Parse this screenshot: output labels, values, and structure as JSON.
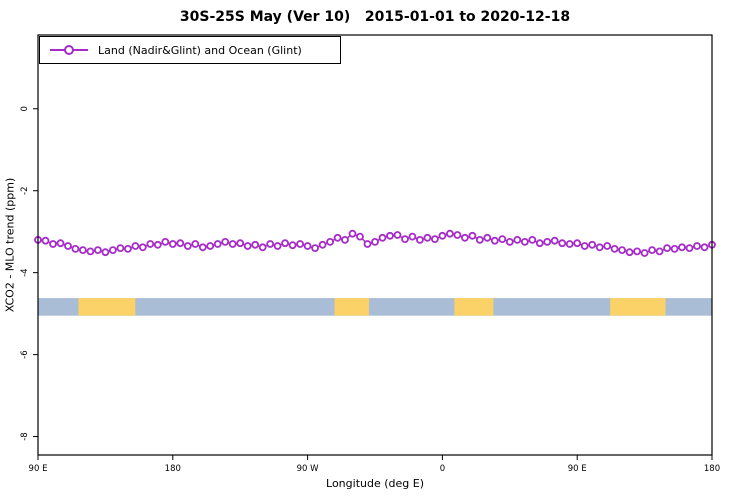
{
  "title": "30S-25S May (Ver 10)   2015-01-01 to 2020-12-18",
  "legend": {
    "label": "Land (Nadir&Glint) and Ocean (Glint)"
  },
  "x_axis": {
    "label": "Longitude (deg E)"
  },
  "y_axis": {
    "label": "XCO2 - MLO trend (ppm)"
  },
  "chart_data": {
    "type": "line",
    "title": "30S-25S May (Ver 10)   2015-01-01 to 2020-12-18",
    "xlabel": "Longitude (deg E)",
    "ylabel": "XCO2 - MLO trend (ppm)",
    "grid": false,
    "legend_position": "top-left",
    "xlim": [
      0,
      450
    ],
    "ylim": [
      -8.45,
      1.8
    ],
    "x_ticks": [
      {
        "pos": 0,
        "label": "90 E"
      },
      {
        "pos": 90,
        "label": "180"
      },
      {
        "pos": 180,
        "label": "90 W"
      },
      {
        "pos": 270,
        "label": "0"
      },
      {
        "pos": 360,
        "label": "90 E"
      },
      {
        "pos": 450,
        "label": "180"
      }
    ],
    "y_ticks": [
      {
        "pos": 0,
        "label": "0"
      },
      {
        "pos": -2,
        "label": "-2"
      },
      {
        "pos": -4,
        "label": "-4"
      },
      {
        "pos": -6,
        "label": "-6"
      },
      {
        "pos": -8,
        "label": "-8"
      }
    ],
    "series": [
      {
        "name": "Land (Nadir&Glint) and Ocean (Glint)",
        "color": "#a62bc9",
        "marker": "open-circle",
        "x": [
          0,
          5,
          10,
          15,
          20,
          25,
          30,
          35,
          40,
          45,
          50,
          55,
          60,
          65,
          70,
          75,
          80,
          85,
          90,
          95,
          100,
          105,
          110,
          115,
          120,
          125,
          130,
          135,
          140,
          145,
          150,
          155,
          160,
          165,
          170,
          175,
          180,
          185,
          190,
          195,
          200,
          205,
          210,
          215,
          220,
          225,
          230,
          235,
          240,
          245,
          250,
          255,
          260,
          265,
          270,
          275,
          280,
          285,
          290,
          295,
          300,
          305,
          310,
          315,
          320,
          325,
          330,
          335,
          340,
          345,
          350,
          355,
          360,
          365,
          370,
          375,
          380,
          385,
          390,
          395,
          400,
          405,
          410,
          415,
          420,
          425,
          430,
          435,
          440,
          445,
          450
        ],
        "y": [
          -3.2,
          -3.22,
          -3.3,
          -3.28,
          -3.35,
          -3.42,
          -3.45,
          -3.48,
          -3.45,
          -3.5,
          -3.45,
          -3.4,
          -3.42,
          -3.35,
          -3.38,
          -3.3,
          -3.32,
          -3.25,
          -3.3,
          -3.28,
          -3.35,
          -3.3,
          -3.38,
          -3.35,
          -3.3,
          -3.25,
          -3.3,
          -3.28,
          -3.35,
          -3.32,
          -3.38,
          -3.3,
          -3.35,
          -3.28,
          -3.33,
          -3.3,
          -3.35,
          -3.4,
          -3.32,
          -3.25,
          -3.15,
          -3.2,
          -3.05,
          -3.12,
          -3.3,
          -3.25,
          -3.15,
          -3.1,
          -3.08,
          -3.18,
          -3.12,
          -3.2,
          -3.15,
          -3.18,
          -3.1,
          -3.05,
          -3.08,
          -3.15,
          -3.1,
          -3.2,
          -3.15,
          -3.22,
          -3.18,
          -3.25,
          -3.2,
          -3.25,
          -3.2,
          -3.28,
          -3.25,
          -3.22,
          -3.28,
          -3.3,
          -3.28,
          -3.35,
          -3.32,
          -3.38,
          -3.35,
          -3.42,
          -3.45,
          -3.5,
          -3.48,
          -3.52,
          -3.45,
          -3.48,
          -3.4,
          -3.42,
          -3.38,
          -3.4,
          -3.35,
          -3.38,
          -3.32
        ]
      }
    ],
    "surface_band": {
      "y_top": -4.62,
      "y_bottom": -5.05,
      "ocean_color": "#a9bdd6",
      "land_color": "#fbd268",
      "ocean_range": [
        0,
        450
      ],
      "land_segments": [
        [
          27,
          65
        ],
        [
          198,
          221
        ],
        [
          278,
          304
        ],
        [
          382,
          419
        ]
      ]
    }
  },
  "colors": {
    "series": "#a62bc9",
    "ocean_band": "#a9bdd6",
    "land_band": "#fbd268",
    "axis": "#000000",
    "background": "#ffffff"
  }
}
